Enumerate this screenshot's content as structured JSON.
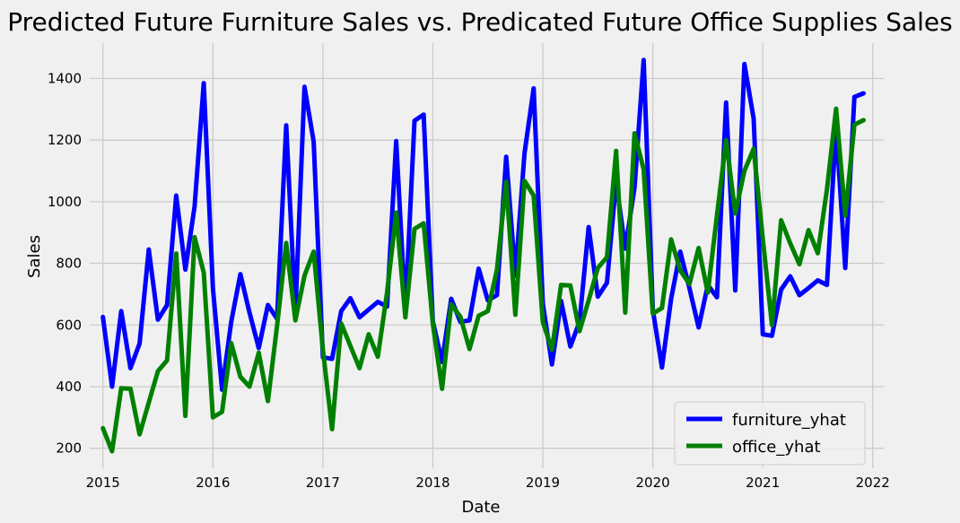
{
  "chart_data": {
    "type": "line",
    "title": "Predicted Future Furniture Sales vs. Predicated Future Office Supplies Sales",
    "xlabel": "Date",
    "ylabel": "Sales",
    "x_start": "2015-01",
    "x_step": "1 month",
    "xlim": [
      2014.88,
      2022.1
    ],
    "ylim": [
      135,
      1515
    ],
    "grid": true,
    "legend_position": "lower right",
    "xticks": [
      2015,
      2016,
      2017,
      2018,
      2019,
      2020,
      2021,
      2022
    ],
    "xtick_labels": [
      "2015",
      "2016",
      "2017",
      "2018",
      "2019",
      "2020",
      "2021",
      "2022"
    ],
    "yticks": [
      200,
      400,
      600,
      800,
      1000,
      1200,
      1400
    ],
    "ytick_labels": [
      "200",
      "400",
      "600",
      "800",
      "1000",
      "1200",
      "1400"
    ],
    "series": [
      {
        "name": "furniture_yhat",
        "color": "#0000ff",
        "values": [
          626,
          400,
          645,
          460,
          540,
          845,
          617,
          665,
          1020,
          780,
          985,
          1385,
          720,
          390,
          610,
          765,
          640,
          525,
          665,
          620,
          1248,
          640,
          1373,
          1195,
          495,
          490,
          645,
          687,
          625,
          650,
          675,
          660,
          1197,
          645,
          1263,
          1283,
          612,
          480,
          685,
          610,
          615,
          783,
          680,
          697,
          1146,
          760,
          1157,
          1368,
          670,
          472,
          678,
          530,
          610,
          918,
          692,
          737,
          1065,
          848,
          1045,
          1460,
          650,
          462,
          685,
          838,
          720,
          592,
          730,
          690,
          1322,
          712,
          1447,
          1270,
          570,
          565,
          715,
          758,
          697,
          720,
          745,
          730,
          1245,
          785,
          1340,
          1352
        ]
      },
      {
        "name": "office_yhat",
        "color": "#008000",
        "values": [
          265,
          190,
          395,
          393,
          245,
          348,
          450,
          485,
          832,
          305,
          885,
          770,
          300,
          318,
          541,
          432,
          400,
          510,
          353,
          597,
          866,
          615,
          760,
          838,
          520,
          262,
          605,
          532,
          460,
          570,
          497,
          705,
          965,
          625,
          912,
          930,
          605,
          393,
          667,
          627,
          522,
          630,
          645,
          780,
          1065,
          633,
          1068,
          1020,
          610,
          520,
          730,
          728,
          580,
          680,
          785,
          820,
          1165,
          640,
          1222,
          1105,
          637,
          655,
          878,
          777,
          733,
          850,
          705,
          955,
          1200,
          962,
          1100,
          1172,
          880,
          600,
          940,
          865,
          797,
          908,
          833,
          1040,
          1302,
          955,
          1250,
          1265
        ]
      }
    ]
  }
}
